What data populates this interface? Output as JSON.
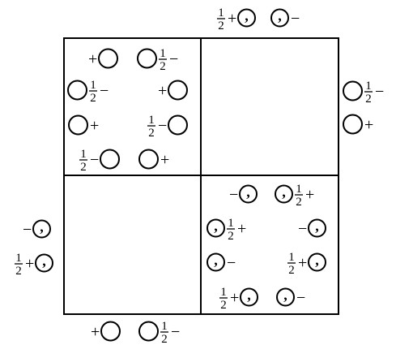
{
  "diagram": {
    "symbols": {
      "plus": "+",
      "minus": "−",
      "half_num": "1",
      "half_den": "2",
      "comma": ","
    },
    "entries": [
      {
        "id": "top-outside-1",
        "group": "outside-top",
        "parts": [
          "half",
          "plus",
          "comma-circle"
        ]
      },
      {
        "id": "top-outside-2",
        "group": "outside-top",
        "parts": [
          "comma-circle",
          "minus"
        ]
      },
      {
        "id": "right-outside-1",
        "group": "outside-right",
        "parts": [
          "circle",
          "half",
          "minus"
        ]
      },
      {
        "id": "right-outside-2",
        "group": "outside-right",
        "parts": [
          "circle",
          "plus"
        ]
      },
      {
        "id": "left-outside-1",
        "group": "outside-left",
        "parts": [
          "minus",
          "comma-circle"
        ]
      },
      {
        "id": "left-outside-2",
        "group": "outside-left",
        "parts": [
          "half",
          "plus",
          "comma-circle"
        ]
      },
      {
        "id": "bottom-outside-1",
        "group": "outside-bottom",
        "parts": [
          "plus",
          "circle"
        ]
      },
      {
        "id": "bottom-outside-2",
        "group": "outside-bottom",
        "parts": [
          "circle",
          "half",
          "minus"
        ]
      },
      {
        "id": "tl-1",
        "group": "top-left",
        "parts": [
          "plus",
          "circle"
        ]
      },
      {
        "id": "tl-2",
        "group": "top-left",
        "parts": [
          "circle",
          "half",
          "minus"
        ]
      },
      {
        "id": "tl-3",
        "group": "top-left",
        "parts": [
          "circle",
          "half",
          "minus"
        ]
      },
      {
        "id": "tl-4",
        "group": "top-left",
        "parts": [
          "plus",
          "circle"
        ]
      },
      {
        "id": "tl-5",
        "group": "top-left",
        "parts": [
          "circle",
          "plus"
        ]
      },
      {
        "id": "tl-6",
        "group": "top-left",
        "parts": [
          "half",
          "minus",
          "circle"
        ]
      },
      {
        "id": "tl-7",
        "group": "top-left",
        "parts": [
          "half",
          "minus",
          "circle"
        ]
      },
      {
        "id": "tl-8",
        "group": "top-left",
        "parts": [
          "circle",
          "plus"
        ]
      },
      {
        "id": "br-1",
        "group": "bottom-right",
        "parts": [
          "minus",
          "comma-circle"
        ]
      },
      {
        "id": "br-2",
        "group": "bottom-right",
        "parts": [
          "comma-circle",
          "half",
          "plus"
        ]
      },
      {
        "id": "br-3",
        "group": "bottom-right",
        "parts": [
          "comma-circle",
          "half",
          "plus"
        ]
      },
      {
        "id": "br-4",
        "group": "bottom-right",
        "parts": [
          "minus",
          "comma-circle"
        ]
      },
      {
        "id": "br-5",
        "group": "bottom-right",
        "parts": [
          "comma-circle",
          "minus"
        ]
      },
      {
        "id": "br-6",
        "group": "bottom-right",
        "parts": [
          "half",
          "plus",
          "comma-circle"
        ]
      },
      {
        "id": "br-7",
        "group": "bottom-right",
        "parts": [
          "half",
          "plus",
          "comma-circle"
        ]
      },
      {
        "id": "br-8",
        "group": "bottom-right",
        "parts": [
          "comma-circle",
          "minus"
        ]
      }
    ]
  }
}
